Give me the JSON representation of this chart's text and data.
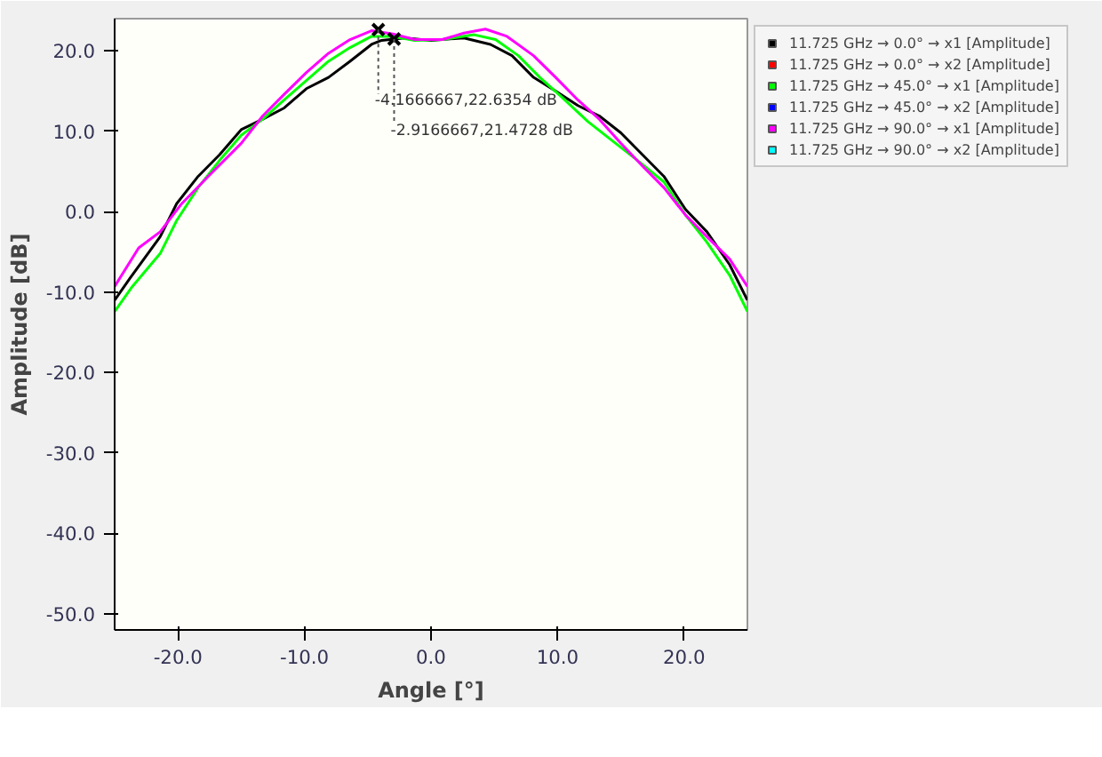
{
  "chart_data": {
    "type": "line",
    "xlabel": "Angle [°]",
    "ylabel": "Amplitude [dB]",
    "xlim": [
      -25,
      25
    ],
    "ylim": [
      -52,
      24
    ],
    "xticks": [
      {
        "value": -20,
        "label": "-20.0"
      },
      {
        "value": -10,
        "label": "-10.0"
      },
      {
        "value": 0,
        "label": "0.0"
      },
      {
        "value": 10,
        "label": "10.0"
      },
      {
        "value": 20,
        "label": "20.0"
      }
    ],
    "yticks": [
      {
        "value": -50,
        "label": "-50.0"
      },
      {
        "value": -40,
        "label": "-40.0"
      },
      {
        "value": -30,
        "label": "-30.0"
      },
      {
        "value": -20,
        "label": "-20.0"
      },
      {
        "value": -10,
        "label": "-10.0"
      },
      {
        "value": 0,
        "label": "0.0"
      },
      {
        "value": 10,
        "label": "10.0"
      },
      {
        "value": 20,
        "label": "20.0"
      }
    ],
    "grid": false,
    "legend": "right",
    "marker": "none",
    "line_style": "solid",
    "series": [
      {
        "name": "11.725 GHz → 0.0° → x1 [Amplitude]",
        "color": "#000000",
        "x": [
          -25,
          -23.8,
          -21.4,
          -20.1,
          -18.4,
          -16.7,
          -15.0,
          -13.3,
          -11.6,
          -9.85,
          -8.1,
          -6.4,
          -4.7,
          -3.9,
          -2.1,
          0,
          2.6,
          4.7,
          6.4,
          8.1,
          9.85,
          11.6,
          13.3,
          15.0,
          16.7,
          18.4,
          20.1,
          21.8,
          23.6,
          25
        ],
        "values": [
          -11.0,
          -8.3,
          -3.1,
          1.0,
          4.4,
          7.1,
          10.2,
          11.5,
          12.9,
          15.3,
          16.7,
          18.7,
          20.8,
          21.3,
          21.6,
          21.3,
          21.6,
          20.8,
          19.4,
          16.7,
          15.0,
          13.2,
          11.9,
          9.8,
          7.1,
          4.4,
          0.3,
          -2.5,
          -6.6,
          -11.0
        ]
      },
      {
        "name": "11.725 GHz → 0.0° → x2 [Amplitude]",
        "color": "#ff0000"
      },
      {
        "name": "11.725 GHz → 45.0° → x1 [Amplitude]",
        "color": "#00ff00",
        "x": [
          -25,
          -23.6,
          -21.4,
          -20.1,
          -18.4,
          -16.7,
          -15.0,
          -13.3,
          -11.6,
          -9.85,
          -8.1,
          -6.4,
          -4.7,
          -3.0,
          -1.3,
          0.9,
          3.4,
          5.1,
          6.9,
          8.6,
          10.3,
          12.4,
          14.1,
          16.3,
          18.4,
          20.1,
          21.8,
          23.6,
          25
        ],
        "values": [
          -12.4,
          -9.3,
          -5.2,
          -1.1,
          3.0,
          6.4,
          9.5,
          11.5,
          13.9,
          16.3,
          18.7,
          20.4,
          21.8,
          21.8,
          21.3,
          21.4,
          22.0,
          21.4,
          19.4,
          16.7,
          14.3,
          11.2,
          9.1,
          6.4,
          3.7,
          -0.4,
          -3.8,
          -7.9,
          -12.4
        ]
      },
      {
        "name": "11.725 GHz → 45.0° → x2 [Amplitude]",
        "color": "#0000ff"
      },
      {
        "name": "11.725 GHz → 90.0° → x1 [Amplitude]",
        "color": "#ff00ff",
        "x": [
          -25,
          -23.1,
          -21.4,
          -19.7,
          -17.6,
          -15.0,
          -13.3,
          -11.6,
          -9.85,
          -8.1,
          -6.4,
          -4.7,
          -3.0,
          -1.3,
          0.9,
          2.6,
          4.3,
          6.0,
          8.1,
          9.85,
          11.6,
          13.3,
          15.0,
          16.7,
          18.4,
          20.1,
          21.8,
          23.6,
          25
        ],
        "values": [
          -9.3,
          -4.5,
          -2.5,
          1.0,
          4.4,
          8.5,
          11.9,
          14.6,
          17.3,
          19.7,
          21.4,
          22.5,
          22.1,
          21.4,
          21.4,
          22.2,
          22.7,
          21.8,
          19.4,
          16.7,
          13.9,
          11.5,
          8.5,
          5.7,
          3.0,
          -0.4,
          -3.1,
          -5.9,
          -9.3
        ]
      },
      {
        "name": "11.725 GHz → 90.0° → x2 [Amplitude]",
        "color": "#00ffff"
      }
    ],
    "annotations": [
      {
        "text": "-4.1666667,22.6354 dB",
        "x": -4.1666667,
        "y": 22.6354
      },
      {
        "text": "-2.9166667,21.4728 dB",
        "x": -2.9166667,
        "y": 21.4728
      }
    ]
  }
}
